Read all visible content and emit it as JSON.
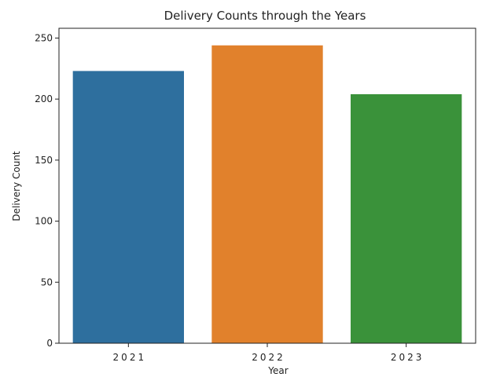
{
  "chart_data": {
    "type": "bar",
    "title": "Delivery Counts through the Years",
    "xlabel": "Year",
    "ylabel": "Delivery Count",
    "categories": [
      "2021",
      "2022",
      "2023"
    ],
    "values": [
      223,
      244,
      204
    ],
    "colors": [
      "#2e6f9e",
      "#e1812c",
      "#3a923a"
    ],
    "ylim": [
      0,
      258
    ],
    "yticks": [
      0,
      50,
      100,
      150,
      200,
      250
    ],
    "grid": false,
    "legend": "none"
  }
}
